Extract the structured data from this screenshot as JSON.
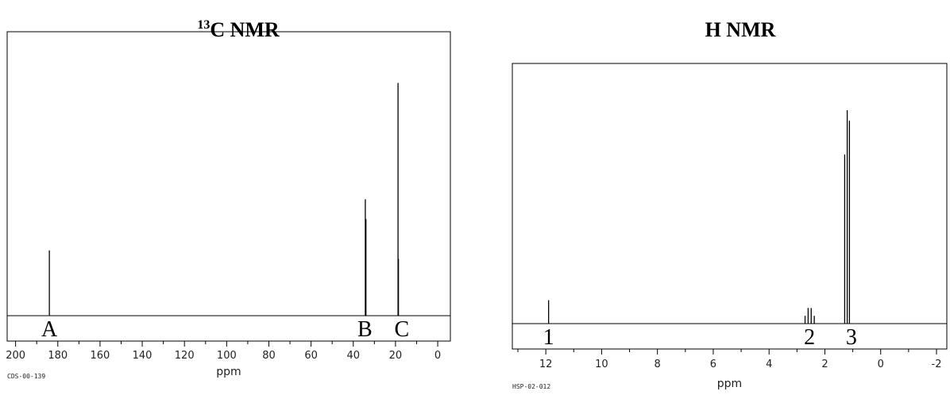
{
  "chart_data": [
    {
      "type": "spectrum",
      "title_sup": "13",
      "title": "C NMR",
      "code": "CDS-00-139",
      "xlabel": "ppm",
      "x": [
        184,
        34.3,
        34.0,
        18.8,
        18.6
      ],
      "values": [
        23,
        41,
        34,
        82,
        20
      ],
      "color": "#000000",
      "xlim": [
        204,
        -6
      ],
      "ylim": [
        0,
        100
      ],
      "xticks": [
        200,
        180,
        160,
        140,
        120,
        100,
        80,
        60,
        40,
        20,
        0
      ],
      "minor_xticks": [
        190,
        170,
        150,
        130,
        110,
        90,
        70,
        50,
        30,
        10
      ],
      "annotations": [
        {
          "text": "A",
          "x": 184
        },
        {
          "text": "B",
          "x": 34.5
        },
        {
          "text": "C",
          "x": 17
        }
      ]
    },
    {
      "type": "spectrum",
      "title": "H NMR",
      "code": "HSP-02-012",
      "xlabel": "ppm",
      "x": [
        11.9,
        2.71,
        2.6,
        2.49,
        2.38,
        1.29,
        1.2,
        1.12
      ],
      "values": [
        9,
        3,
        6,
        6,
        3,
        65,
        82,
        78
      ],
      "color": "#000000",
      "xlim": [
        13.2,
        -2.37
      ],
      "ylim": [
        0,
        100
      ],
      "xticks": [
        12,
        10,
        8,
        6,
        4,
        2,
        0,
        -2
      ],
      "minor_xticks": [
        13,
        11,
        9,
        7,
        5,
        3,
        1,
        -1
      ],
      "annotations": [
        {
          "text": "1",
          "x": 11.9
        },
        {
          "text": "2",
          "x": 2.55
        },
        {
          "text": "3",
          "x": 1.05
        }
      ]
    }
  ]
}
